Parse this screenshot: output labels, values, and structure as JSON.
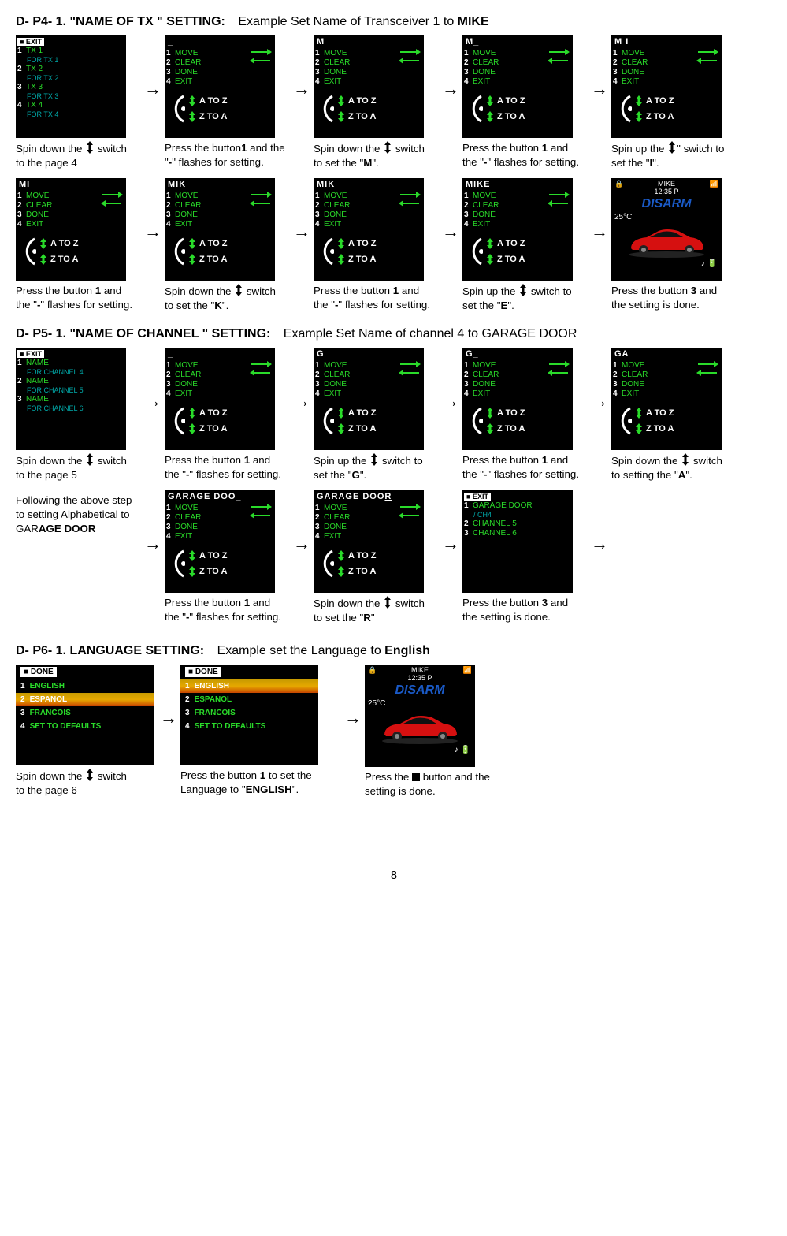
{
  "sections": {
    "p4": {
      "title": "D- P4- 1. \"NAME OF TX \" SETTING:",
      "example": "Example Set Name of Transceiver 1 to ",
      "example_bold": "MIKE"
    },
    "p5": {
      "title": "D- P5- 1. \"NAME OF CHANNEL \" SETTING:",
      "example": "Example Set Name of channel 4 to GARAGE DOOR"
    },
    "p6": {
      "title": "D- P6- 1. LANGUAGE SETTING:",
      "example": "Example set the Language to ",
      "example_bold": "English"
    }
  },
  "tx_screen": {
    "exit": "EXIT",
    "items": [
      {
        "n": "1",
        "t": "TX 1",
        "sub": "FOR TX 1"
      },
      {
        "n": "2",
        "t": "TX 2",
        "sub": "FOR TX 2"
      },
      {
        "n": "3",
        "t": "TX 3",
        "sub": "FOR TX 3"
      },
      {
        "n": "4",
        "t": "TX 4",
        "sub": "FOR TX 4"
      }
    ]
  },
  "edit_menu": {
    "items": [
      {
        "n": "1",
        "t": "MOVE"
      },
      {
        "n": "2",
        "t": "CLEAR"
      },
      {
        "n": "3",
        "t": "DONE"
      },
      {
        "n": "4",
        "t": "EXIT"
      }
    ],
    "atoz": "A TO Z",
    "ztoa": "Z TO A"
  },
  "home": {
    "name": "MIKE",
    "time": "12:35 P",
    "disarm": "DISARM",
    "temp": "25°C"
  },
  "channel_screen": {
    "exit": "EXIT",
    "items": [
      {
        "n": "1",
        "t": "NAME",
        "sub": "FOR CHANNEL 4"
      },
      {
        "n": "2",
        "t": "NAME",
        "sub": "FOR CHANNEL 5"
      },
      {
        "n": "3",
        "t": "NAME",
        "sub": "FOR CHANNEL 6"
      }
    ]
  },
  "channel_done": {
    "exit": "EXIT",
    "items": [
      {
        "n": "1",
        "t": "GARAGE DOOR",
        "sub": "/ CH4"
      },
      {
        "n": "2",
        "t": "CHANNEL 5"
      },
      {
        "n": "3",
        "t": "CHANNEL 6"
      }
    ]
  },
  "lang": {
    "done": "DONE",
    "items": [
      {
        "n": "1",
        "t": "ENGLISH"
      },
      {
        "n": "2",
        "t": "ESPANOL"
      },
      {
        "n": "3",
        "t": "FRANCOIS"
      },
      {
        "n": "4",
        "t": "SET TO DEFAULTS"
      }
    ]
  },
  "captions": {
    "p4": [
      "Spin down the {SW} switch to the page 4",
      "Press the button<b>1</b> and the \"<b>-</b>\" flashes for setting.",
      "Spin down the {SW} switch to set the \"<b>M</b>\".",
      "Press the button <b>1</b> and the \"<b>-</b>\" flashes for setting.",
      "Spin up the {SW}\" switch to set the \"<b>I</b>\".",
      "Press the button <b>1</b> and the \"<b>-</b>\" flashes for setting.",
      "Spin down the {SW} switch to set the \"<b>K</b>\".",
      "Press the button <b>1</b> and the \"<b>-</b>\" flashes for setting.",
      "Spin up the {SW} switch to set the \"<b>E</b>\".",
      "Press the button <b>3</b> and the setting is done."
    ],
    "p5": [
      "Spin down the {SW} switch to the page 5",
      "Press the button <b>1</b> and the \"<b>-</b>\" flashes for setting.",
      "Spin up the {SW} switch to set the \"<b>G</b>\".",
      "Press the button <b>1</b> and the \"<b>-</b>\" flashes for setting.",
      "Spin down the {SW} switch to setting the \"<b>A</b>\".",
      "Following the above step to setting Alphabetical to GAR<b>AGE DOOR</b>",
      "Press the button <b>1</b> and the \"<b>-</b>\" flashes for setting.",
      "Spin down the {SW} switch to set the \"<b>R</b>\"",
      "Press the button <b>3</b> and the setting is done."
    ],
    "p6": [
      "Spin down the {SW} switch to the page 6",
      "Press the button <b>1</b> to set the Language to \"<b>ENGLISH</b>\".",
      "Press the {SQ} button and the setting is done."
    ]
  },
  "topbars": {
    "p4": [
      "",
      "_",
      "M",
      "M_",
      "M I",
      "MI_",
      "MI<u>K</u>",
      "MIK_",
      "MIK<u>E</u>"
    ],
    "p5": [
      "",
      "_",
      "G",
      "G_",
      "GA",
      "GARAGE DOO_",
      "GARAGE DOO<u>R</u>"
    ]
  },
  "page_number": "8"
}
